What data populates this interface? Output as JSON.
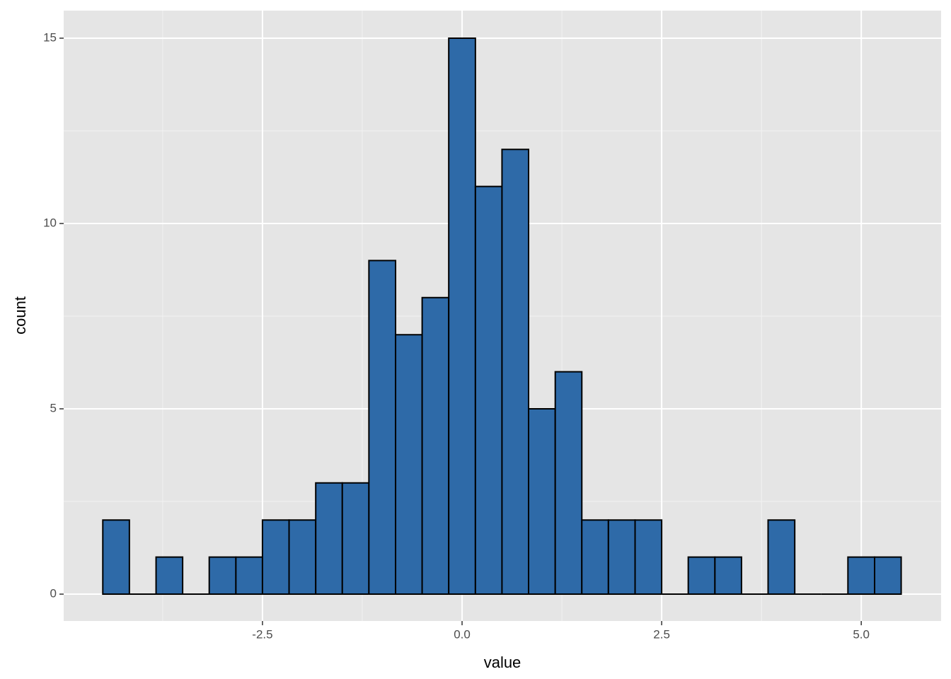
{
  "chart_data": {
    "type": "histogram",
    "x_label": "value",
    "y_label": "count",
    "bins": [
      -4.5,
      -4.167,
      -3.833,
      -3.5,
      -3.167,
      -2.833,
      -2.5,
      -2.167,
      -1.833,
      -1.5,
      -1.167,
      -0.833,
      -0.5,
      -0.167,
      0.167,
      0.5,
      0.833,
      1.167,
      1.5,
      1.833,
      2.167,
      2.5,
      2.833,
      3.167,
      3.5,
      3.833,
      4.167,
      4.5,
      4.833,
      5.167,
      5.5
    ],
    "counts": [
      2,
      0,
      1,
      0,
      1,
      1,
      2,
      2,
      3,
      3,
      9,
      7,
      8,
      15,
      11,
      12,
      5,
      6,
      2,
      2,
      2,
      0,
      1,
      1,
      0,
      2,
      0,
      0,
      1,
      1
    ],
    "color": "#2e6aa8",
    "edge_color": "#000000",
    "xlim": [
      -4.99,
      6.0
    ],
    "ylim": [
      -0.725,
      15.744
    ],
    "xticks": [
      -2.5,
      {
        "value": 0,
        "label": "0.0"
      },
      2.5,
      {
        "value": 5,
        "label": "5.0"
      }
    ],
    "yticks": [
      0,
      5,
      10,
      15
    ],
    "grid": true
  }
}
